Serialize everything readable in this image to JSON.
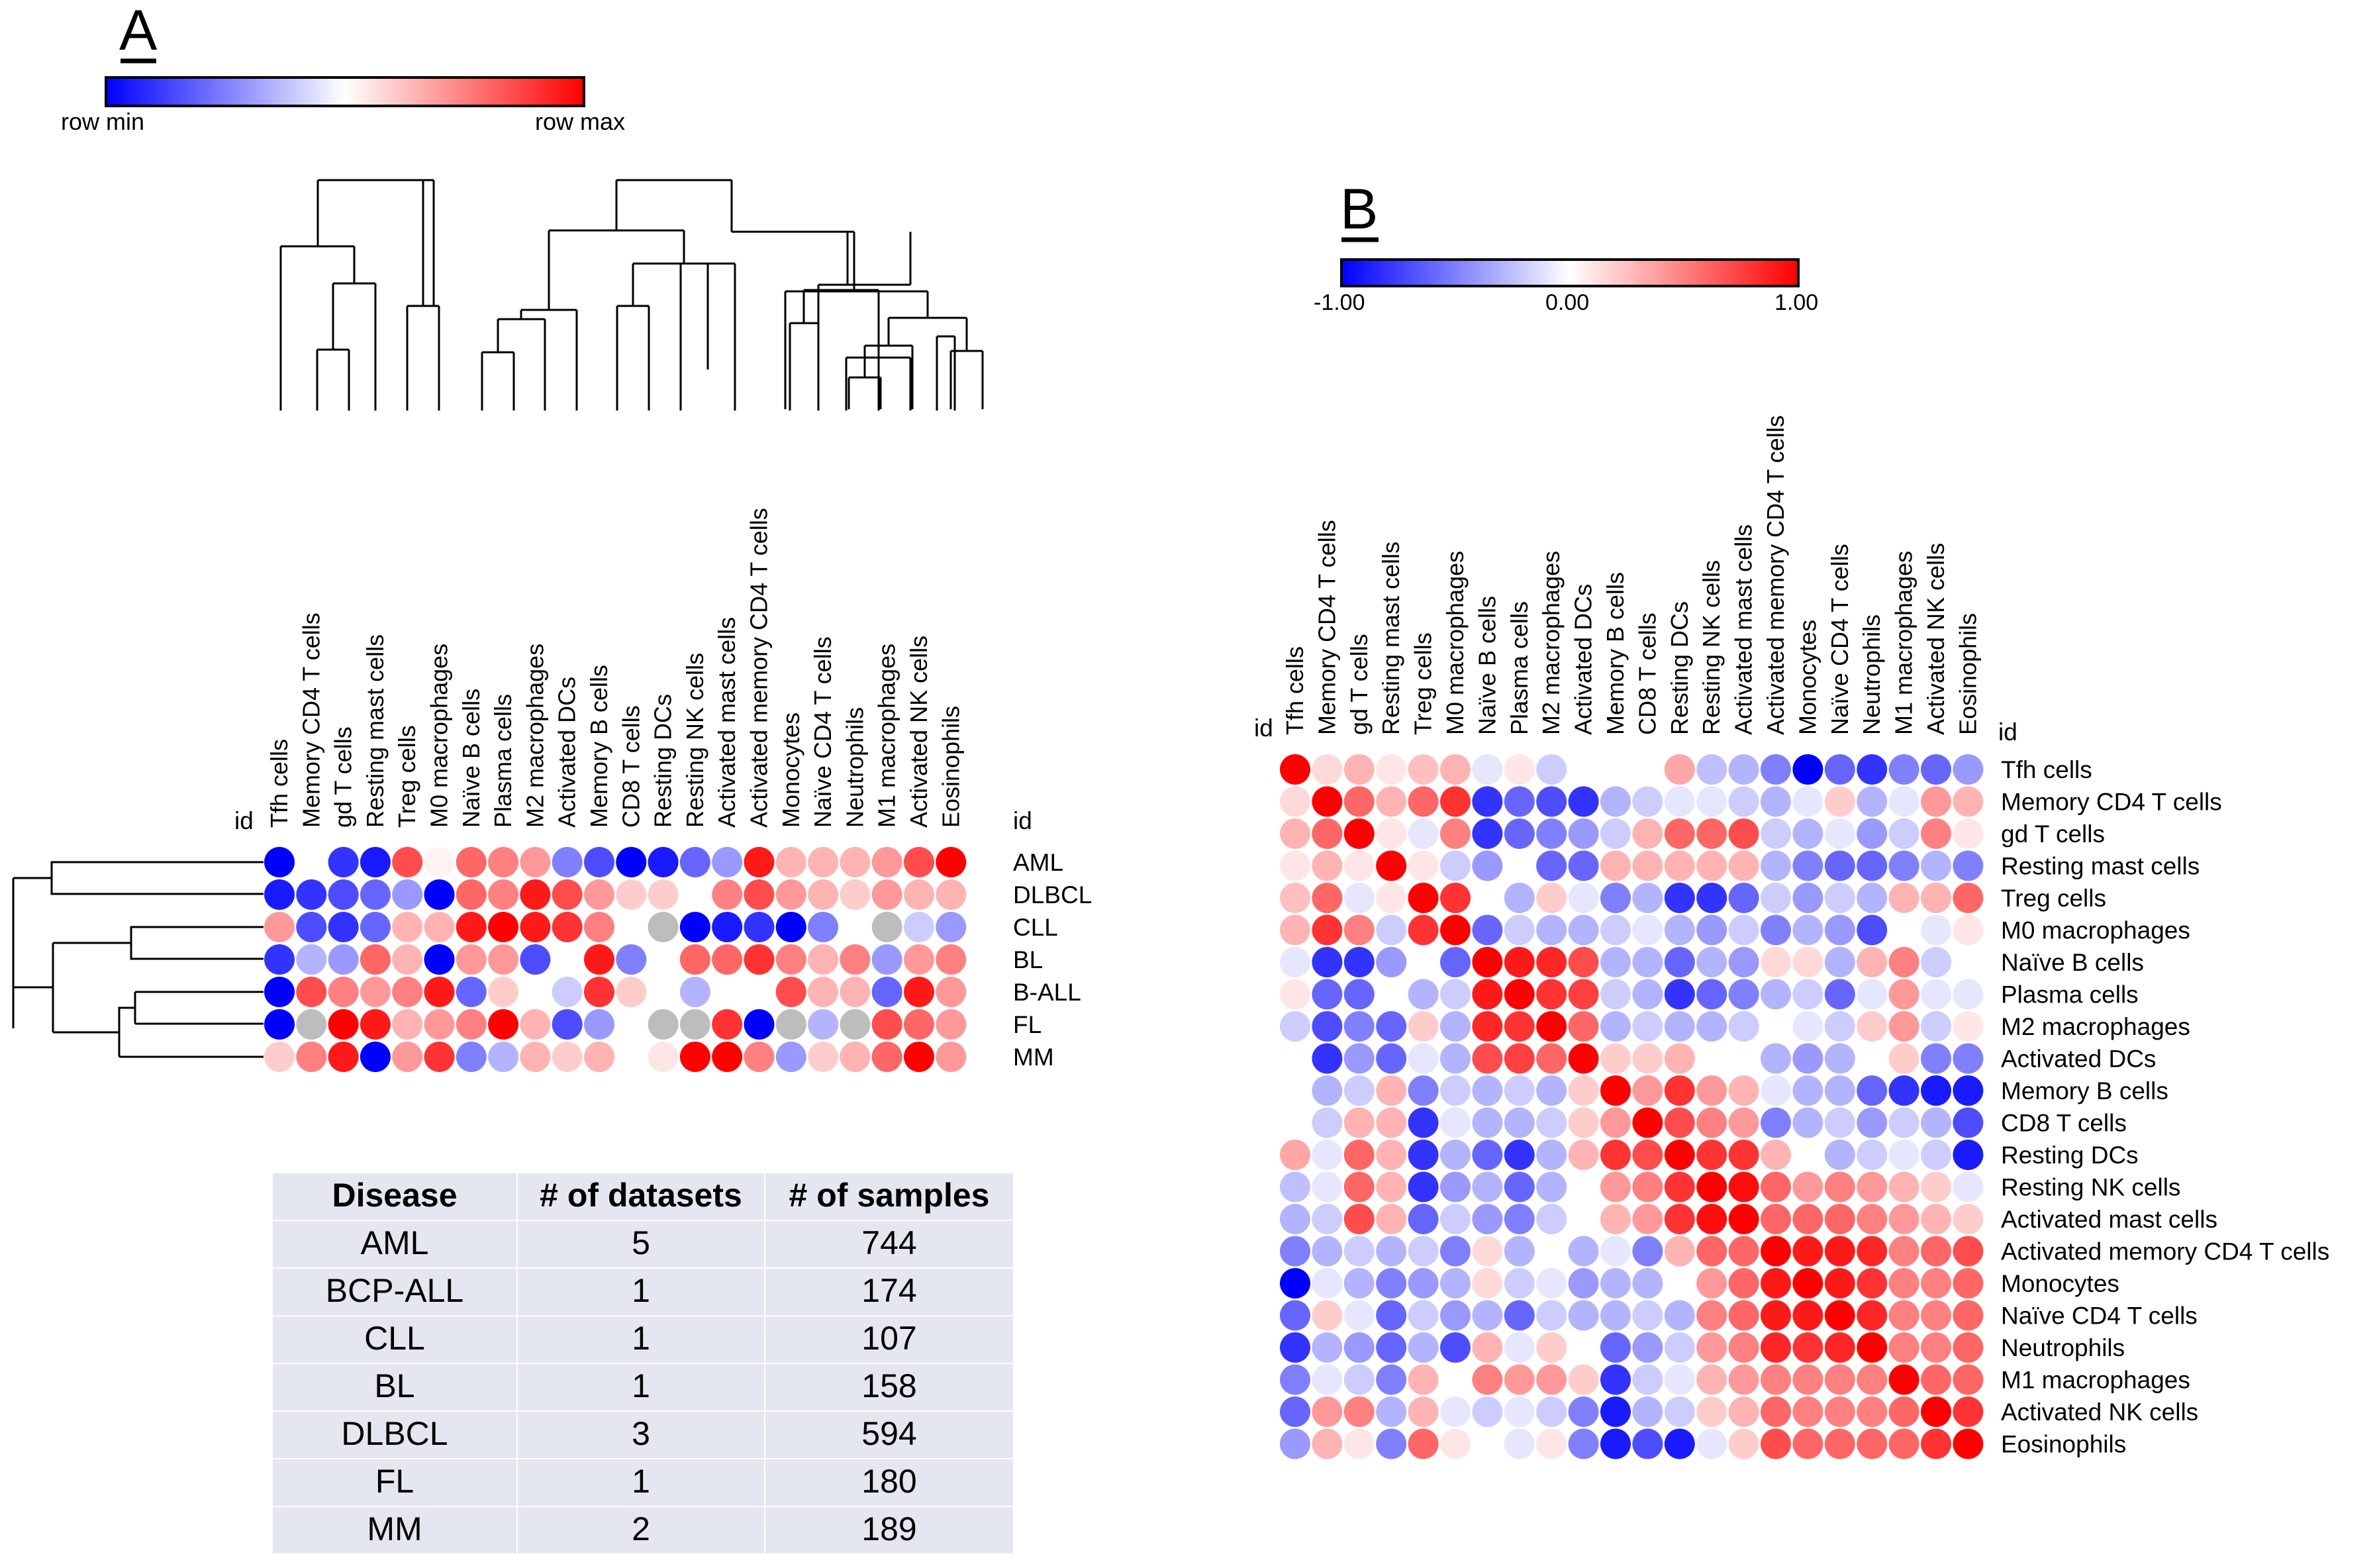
{
  "colors": {
    "min": "#0000ff",
    "mid": "#ffffff",
    "max": "#ff0000",
    "na": "#bdbdbd",
    "table_bg": "#e4e6f0",
    "line": "#000000"
  },
  "chart_data": [
    {
      "type": "heatmap",
      "panel": "A",
      "legend": {
        "min_label": "row min",
        "max_label": "row max"
      },
      "id_label": "id",
      "columns": [
        "Tfh cells",
        "Memory CD4 T cells",
        "gd T cells",
        "Resting mast cells",
        "Treg cells",
        "M0 macrophages",
        "Naïve B cells",
        "Plasma cells",
        "M2 macrophages",
        "Activated DCs",
        "Memory B cells",
        "CD8 T cells",
        "Resting DCs",
        "Resting NK cells",
        "Activated mast cells",
        "Activated memory CD4 T cells",
        "Monocytes",
        "Naïve CD4 T cells",
        "Neutrophils",
        "M1 macrophages",
        "Activated NK cells",
        "Eosinophils"
      ],
      "rows": [
        "AML",
        "DLBCL",
        "CLL",
        "BL",
        "B-ALL",
        "FL",
        "MM"
      ],
      "values": [
        [
          -1.0,
          0.0,
          -0.8,
          -0.9,
          0.7,
          0.05,
          0.6,
          0.5,
          0.4,
          -0.5,
          -0.7,
          -1.0,
          -0.9,
          -0.6,
          -0.4,
          0.9,
          0.3,
          0.3,
          0.3,
          0.4,
          0.7,
          1.0
        ],
        [
          -0.9,
          -0.8,
          -0.7,
          -0.6,
          -0.4,
          -1.0,
          0.6,
          0.5,
          0.9,
          0.7,
          0.4,
          0.2,
          0.2,
          0.0,
          0.5,
          0.7,
          0.4,
          0.3,
          0.2,
          0.4,
          0.3,
          0.3
        ],
        [
          0.4,
          -0.7,
          -0.8,
          -0.6,
          0.3,
          0.3,
          0.9,
          1.0,
          0.9,
          0.8,
          0.5,
          0.0,
          null,
          -1.0,
          -0.9,
          -0.8,
          -1.0,
          -0.5,
          0.0,
          null,
          -0.2,
          -0.4
        ],
        [
          -0.8,
          -0.3,
          -0.4,
          0.6,
          0.3,
          -1.0,
          0.4,
          0.4,
          -0.7,
          0.0,
          0.9,
          -0.5,
          0.0,
          0.6,
          0.6,
          0.8,
          0.5,
          0.3,
          0.5,
          -0.4,
          0.4,
          0.5
        ],
        [
          -1.0,
          0.7,
          0.5,
          0.4,
          0.5,
          0.9,
          -0.6,
          0.2,
          0.0,
          -0.2,
          0.8,
          0.2,
          0.0,
          -0.3,
          0.0,
          0.0,
          0.7,
          0.3,
          0.3,
          -0.6,
          0.9,
          0.4
        ],
        [
          -1.0,
          null,
          1.0,
          0.9,
          0.3,
          0.4,
          0.5,
          1.0,
          0.3,
          -0.7,
          -0.4,
          0.0,
          null,
          null,
          0.8,
          -1.0,
          null,
          -0.3,
          null,
          0.7,
          0.6,
          0.4
        ],
        [
          0.2,
          0.5,
          0.9,
          -1.0,
          0.4,
          0.8,
          -0.5,
          -0.3,
          0.3,
          0.2,
          0.3,
          0.0,
          0.1,
          1.0,
          1.0,
          0.5,
          -0.4,
          0.2,
          0.3,
          0.6,
          1.0,
          0.4
        ]
      ],
      "dendrogram_top": "hierarchical clustering of cell types",
      "dendrogram_left": "hierarchical clustering of diseases"
    },
    {
      "type": "table",
      "panel": "A",
      "headers": [
        "Disease",
        "# of datasets",
        "# of samples"
      ],
      "rows": [
        [
          "AML",
          "5",
          "744"
        ],
        [
          "BCP-ALL",
          "1",
          "174"
        ],
        [
          "CLL",
          "1",
          "107"
        ],
        [
          "BL",
          "1",
          "158"
        ],
        [
          "DLBCL",
          "3",
          "594"
        ],
        [
          "FL",
          "1",
          "180"
        ],
        [
          "MM",
          "2",
          "189"
        ]
      ]
    },
    {
      "type": "heatmap",
      "panel": "B",
      "legend": {
        "min_label": "-1.00",
        "mid_label": "0.00",
        "max_label": "1.00",
        "range": [
          -1,
          1
        ]
      },
      "id_label": "id",
      "labels": [
        "Tfh cells",
        "Memory CD4 T cells",
        "gd T cells",
        "Resting mast cells",
        "Treg cells",
        "M0 macrophages",
        "Naïve B cells",
        "Plasma cells",
        "M2 macrophages",
        "Activated DCs",
        "Memory B cells",
        "CD8 T cells",
        "Resting DCs",
        "Resting NK cells",
        "Activated mast cells",
        "Activated memory CD4 T cells",
        "Monocytes",
        "Naïve CD4 T cells",
        "Neutrophils",
        "M1 macrophages",
        "Activated NK cells",
        "Eosinophils"
      ],
      "values": [
        [
          1.0,
          0.15,
          0.3,
          0.1,
          0.25,
          0.3,
          -0.1,
          0.1,
          -0.2,
          0.0,
          0.0,
          0.0,
          0.35,
          -0.25,
          -0.3,
          -0.5,
          -1.0,
          -0.6,
          -0.8,
          -0.5,
          -0.6,
          -0.4
        ],
        [
          0.15,
          1.0,
          0.6,
          0.3,
          0.6,
          0.8,
          -0.8,
          -0.6,
          -0.7,
          -0.8,
          -0.3,
          -0.2,
          -0.1,
          -0.1,
          -0.2,
          -0.3,
          -0.1,
          0.2,
          -0.3,
          -0.1,
          0.4,
          0.3
        ],
        [
          0.3,
          0.6,
          1.0,
          0.1,
          -0.1,
          0.5,
          -0.8,
          -0.6,
          -0.5,
          -0.4,
          -0.2,
          0.3,
          0.6,
          0.6,
          0.7,
          -0.2,
          -0.3,
          -0.1,
          -0.4,
          -0.2,
          0.5,
          0.1
        ],
        [
          0.1,
          0.3,
          0.1,
          1.0,
          0.1,
          -0.2,
          -0.4,
          0.0,
          -0.6,
          -0.6,
          0.3,
          0.3,
          0.3,
          0.3,
          0.3,
          -0.3,
          -0.5,
          -0.6,
          -0.6,
          -0.5,
          -0.3,
          -0.5
        ],
        [
          0.25,
          0.6,
          -0.1,
          0.1,
          1.0,
          0.8,
          0.0,
          -0.3,
          0.2,
          -0.1,
          -0.5,
          -0.3,
          -0.8,
          -0.8,
          -0.6,
          -0.2,
          -0.4,
          -0.2,
          -0.3,
          0.3,
          0.3,
          0.6
        ],
        [
          0.3,
          0.8,
          0.5,
          -0.2,
          0.8,
          1.0,
          -0.6,
          -0.2,
          -0.3,
          -0.3,
          -0.2,
          -0.1,
          -0.3,
          -0.4,
          -0.2,
          -0.5,
          -0.3,
          -0.4,
          -0.7,
          0.0,
          -0.1,
          0.1
        ],
        [
          -0.1,
          -0.8,
          -0.8,
          -0.4,
          0.0,
          -0.6,
          1.0,
          0.9,
          0.85,
          0.7,
          -0.3,
          -0.3,
          -0.6,
          -0.3,
          -0.4,
          0.15,
          0.15,
          -0.3,
          0.3,
          0.5,
          -0.2,
          0.0
        ],
        [
          0.1,
          -0.6,
          -0.6,
          0.0,
          -0.3,
          -0.2,
          0.9,
          1.0,
          0.8,
          0.75,
          -0.2,
          -0.3,
          -0.8,
          -0.6,
          -0.5,
          -0.3,
          -0.2,
          -0.6,
          -0.1,
          0.4,
          -0.1,
          -0.1
        ],
        [
          -0.2,
          -0.7,
          -0.5,
          -0.6,
          0.2,
          -0.3,
          0.85,
          0.8,
          1.0,
          0.6,
          -0.3,
          -0.2,
          -0.3,
          -0.3,
          -0.2,
          0.0,
          -0.1,
          -0.2,
          0.2,
          0.4,
          -0.2,
          0.1
        ],
        [
          0.0,
          -0.8,
          -0.4,
          -0.6,
          -0.1,
          -0.3,
          0.7,
          0.75,
          0.6,
          1.0,
          0.2,
          0.2,
          0.3,
          0.0,
          0.0,
          -0.3,
          -0.4,
          -0.3,
          0.0,
          0.2,
          -0.5,
          -0.5
        ],
        [
          0.0,
          -0.3,
          -0.2,
          0.3,
          -0.5,
          -0.2,
          -0.3,
          -0.2,
          -0.3,
          0.2,
          1.0,
          0.4,
          0.8,
          0.4,
          0.3,
          -0.1,
          -0.3,
          -0.3,
          -0.6,
          -0.8,
          -0.9,
          -0.9
        ],
        [
          0.0,
          -0.2,
          0.3,
          0.3,
          -0.8,
          -0.1,
          -0.3,
          -0.3,
          -0.2,
          0.2,
          0.4,
          1.0,
          0.7,
          0.5,
          0.4,
          -0.5,
          -0.3,
          -0.2,
          -0.4,
          -0.2,
          -0.3,
          -0.7
        ],
        [
          0.35,
          -0.1,
          0.6,
          0.3,
          -0.8,
          -0.3,
          -0.6,
          -0.8,
          -0.3,
          0.3,
          0.8,
          0.7,
          1.0,
          0.8,
          0.8,
          0.3,
          0.0,
          -0.3,
          -0.2,
          -0.1,
          -0.2,
          -0.9
        ],
        [
          -0.25,
          -0.1,
          0.6,
          0.3,
          -0.8,
          -0.4,
          -0.3,
          -0.6,
          -0.3,
          0.0,
          0.4,
          0.5,
          0.8,
          1.0,
          0.95,
          0.6,
          0.4,
          0.5,
          0.4,
          0.3,
          0.2,
          -0.1
        ],
        [
          -0.3,
          -0.2,
          0.7,
          0.3,
          -0.6,
          -0.2,
          -0.4,
          -0.5,
          -0.2,
          0.0,
          0.3,
          0.4,
          0.8,
          0.95,
          1.0,
          0.6,
          0.6,
          0.6,
          0.5,
          0.4,
          0.3,
          0.2
        ],
        [
          -0.5,
          -0.3,
          -0.2,
          -0.3,
          -0.2,
          -0.5,
          0.15,
          -0.3,
          0.0,
          -0.3,
          -0.1,
          -0.5,
          0.3,
          0.6,
          0.6,
          1.0,
          0.9,
          0.9,
          0.85,
          0.5,
          0.6,
          0.7
        ],
        [
          -1.0,
          -0.1,
          -0.3,
          -0.5,
          -0.4,
          -0.3,
          0.15,
          -0.2,
          -0.1,
          -0.4,
          -0.3,
          -0.3,
          0.0,
          0.4,
          0.6,
          0.9,
          1.0,
          0.9,
          0.8,
          0.5,
          0.5,
          0.6
        ],
        [
          -0.6,
          0.2,
          -0.1,
          -0.6,
          -0.2,
          -0.4,
          -0.3,
          -0.6,
          -0.2,
          -0.3,
          -0.3,
          -0.2,
          -0.3,
          0.5,
          0.6,
          0.9,
          0.9,
          1.0,
          0.85,
          0.5,
          0.5,
          0.6
        ],
        [
          -0.8,
          -0.3,
          -0.4,
          -0.6,
          -0.3,
          -0.7,
          0.3,
          -0.1,
          0.2,
          0.0,
          -0.6,
          -0.4,
          -0.2,
          0.4,
          0.5,
          0.85,
          0.8,
          0.85,
          1.0,
          0.5,
          0.5,
          0.6
        ],
        [
          -0.5,
          -0.1,
          -0.2,
          -0.5,
          0.3,
          0.0,
          0.5,
          0.4,
          0.4,
          0.2,
          -0.8,
          -0.2,
          -0.1,
          0.3,
          0.4,
          0.5,
          0.5,
          0.5,
          0.5,
          1.0,
          0.6,
          0.6
        ],
        [
          -0.6,
          0.4,
          0.5,
          -0.3,
          0.3,
          -0.1,
          -0.2,
          -0.1,
          -0.2,
          -0.5,
          -0.9,
          -0.3,
          -0.2,
          0.2,
          0.3,
          0.6,
          0.5,
          0.5,
          0.5,
          0.6,
          1.0,
          0.8
        ],
        [
          -0.4,
          0.3,
          0.1,
          -0.5,
          0.6,
          0.1,
          0.0,
          -0.1,
          0.1,
          -0.5,
          -0.9,
          -0.7,
          -0.9,
          -0.1,
          0.2,
          0.7,
          0.6,
          0.6,
          0.6,
          0.6,
          0.8,
          1.0
        ]
      ]
    }
  ]
}
